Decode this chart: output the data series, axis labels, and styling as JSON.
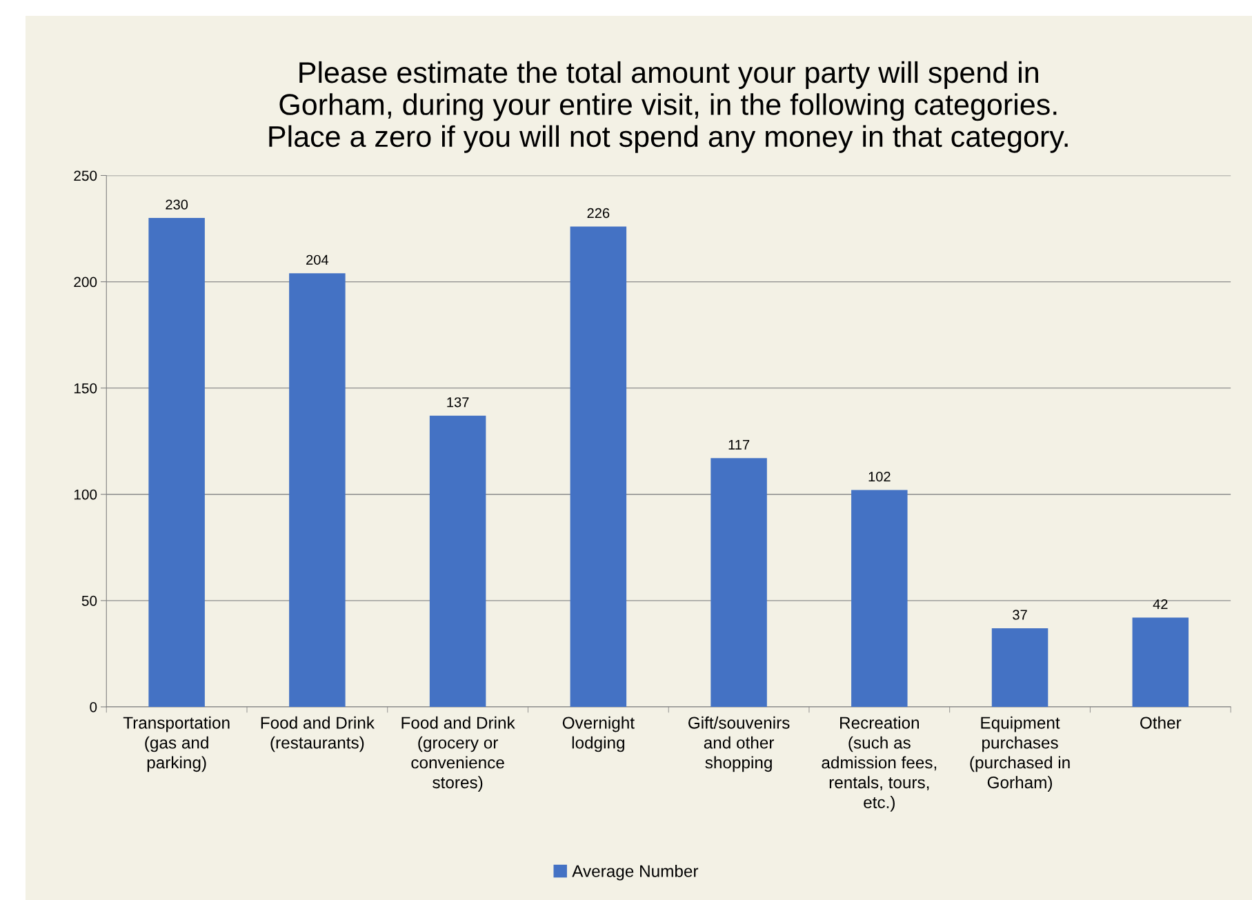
{
  "chart_data": {
    "type": "bar",
    "title": "Please estimate the total amount your party will spend in\nGorham, during your entire visit, in the following categories.\nPlace a zero if you will not spend any money in that category.",
    "categories": [
      "Transportation\n(gas and\nparking)",
      "Food and Drink\n(restaurants)",
      "Food and Drink\n(grocery or\nconvenience\nstores)",
      "Overnight\nlodging",
      "Gift/souvenirs\nand other\nshopping",
      "Recreation\n(such as\nadmission fees,\nrentals, tours,\netc.)",
      "Equipment\npurchases\n(purchased in\nGorham)",
      "Other"
    ],
    "series": [
      {
        "name": "Average Number",
        "color": "#4472c4",
        "values": [
          230,
          204,
          137,
          226,
          117,
          102,
          37,
          42
        ]
      }
    ],
    "ylim": [
      0,
      250
    ],
    "yticks": [
      0,
      50,
      100,
      150,
      200,
      250
    ],
    "grid": "y",
    "legend": "bottom",
    "data_labels": true
  }
}
